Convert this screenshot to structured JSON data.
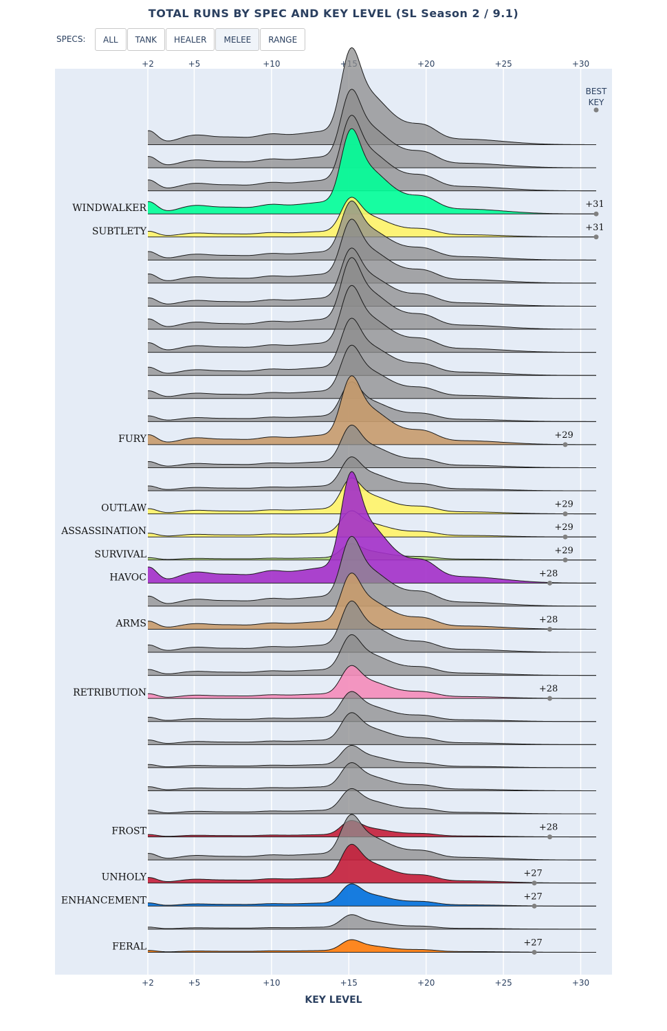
{
  "title": "TOTAL RUNS BY SPEC AND KEY LEVEL (SL Season 2 / 9.1)",
  "filter": {
    "label": "SPECS:",
    "buttons": [
      {
        "id": "all",
        "label": "ALL"
      },
      {
        "id": "tank",
        "label": "TANK"
      },
      {
        "id": "healer",
        "label": "HEALER"
      },
      {
        "id": "melee",
        "label": "MELEE"
      },
      {
        "id": "range",
        "label": "RANGE"
      }
    ],
    "active": "melee"
  },
  "chart_data": {
    "type": "area",
    "xlabel": "KEY LEVEL",
    "xlim": [
      2,
      31
    ],
    "xticks": [
      2,
      5,
      10,
      15,
      20,
      25,
      30
    ],
    "xtick_labels": [
      "+2",
      "+5",
      "+10",
      "+15",
      "+20",
      "+25",
      "+30"
    ],
    "best_key_label": [
      "BEST",
      "KEY"
    ],
    "gray_color": "#8c8c8c",
    "grid": true,
    "series": [
      {
        "name": "",
        "highlight": false,
        "peak": 1.0
      },
      {
        "name": "",
        "highlight": false,
        "peak": 0.81
      },
      {
        "name": "",
        "highlight": false,
        "peak": 0.78
      },
      {
        "name": "WINDWALKER",
        "highlight": true,
        "color": "#00ff98",
        "peak": 0.88,
        "best_key": "+31",
        "best_key_value": 31
      },
      {
        "name": "SUBTLETY",
        "highlight": true,
        "color": "#fff468",
        "peak": 0.41,
        "best_key": "+31",
        "best_key_value": 31
      },
      {
        "name": "",
        "highlight": false,
        "peak": 0.61
      },
      {
        "name": "",
        "highlight": false,
        "peak": 0.66
      },
      {
        "name": "",
        "highlight": false,
        "peak": 0.6
      },
      {
        "name": "",
        "highlight": false,
        "peak": 0.74
      },
      {
        "name": "",
        "highlight": false,
        "peak": 0.69
      },
      {
        "name": "",
        "highlight": false,
        "peak": 0.59
      },
      {
        "name": "",
        "highlight": false,
        "peak": 0.55
      },
      {
        "name": "",
        "highlight": false,
        "peak": 0.41
      },
      {
        "name": "FURY",
        "highlight": true,
        "color": "#c69b6d",
        "peak": 0.71,
        "best_key": "+29",
        "best_key_value": 29
      },
      {
        "name": "",
        "highlight": false,
        "peak": 0.44
      },
      {
        "name": "",
        "highlight": false,
        "peak": 0.35
      },
      {
        "name": "OUTLAW",
        "highlight": true,
        "color": "#fff468",
        "peak": 0.37,
        "best_key": "+29",
        "best_key_value": 29
      },
      {
        "name": "ASSASSINATION",
        "highlight": true,
        "color": "#fff468",
        "peak": 0.27,
        "best_key": "+29",
        "best_key_value": 29
      },
      {
        "name": "SURVIVAL",
        "highlight": true,
        "color": "#aad372",
        "peak": 0.17,
        "best_key": "+29",
        "best_key_value": 29
      },
      {
        "name": "HAVOC",
        "highlight": true,
        "color": "#a330c9",
        "peak": 1.15,
        "best_key": "+28",
        "best_key_value": 28
      },
      {
        "name": "",
        "highlight": false,
        "peak": 0.72
      },
      {
        "name": "ARMS",
        "highlight": true,
        "color": "#c69b6d",
        "peak": 0.58,
        "best_key": "+28",
        "best_key_value": 28
      },
      {
        "name": "",
        "highlight": false,
        "peak": 0.53
      },
      {
        "name": "",
        "highlight": false,
        "peak": 0.42
      },
      {
        "name": "RETRIBUTION",
        "highlight": true,
        "color": "#f48cba",
        "peak": 0.34,
        "best_key": "+28",
        "best_key_value": 28
      },
      {
        "name": "",
        "highlight": false,
        "peak": 0.31
      },
      {
        "name": "",
        "highlight": false,
        "peak": 0.33
      },
      {
        "name": "",
        "highlight": false,
        "peak": 0.23
      },
      {
        "name": "",
        "highlight": false,
        "peak": 0.29
      },
      {
        "name": "",
        "highlight": false,
        "peak": 0.26
      },
      {
        "name": "FROST",
        "highlight": true,
        "color": "#c41e3a",
        "peak": 0.17,
        "best_key": "+28",
        "best_key_value": 28
      },
      {
        "name": "",
        "highlight": false,
        "peak": 0.47
      },
      {
        "name": "UNHOLY",
        "highlight": true,
        "color": "#c41e3a",
        "peak": 0.4,
        "best_key": "+27",
        "best_key_value": 27
      },
      {
        "name": "ENHANCEMENT",
        "highlight": true,
        "color": "#0070dd",
        "peak": 0.23,
        "best_key": "+27",
        "best_key_value": 27
      },
      {
        "name": "",
        "highlight": false,
        "peak": 0.15
      },
      {
        "name": "FERAL",
        "highlight": true,
        "color": "#ff7c0a",
        "peak": 0.13,
        "best_key": "+27",
        "best_key_value": 27
      }
    ]
  }
}
